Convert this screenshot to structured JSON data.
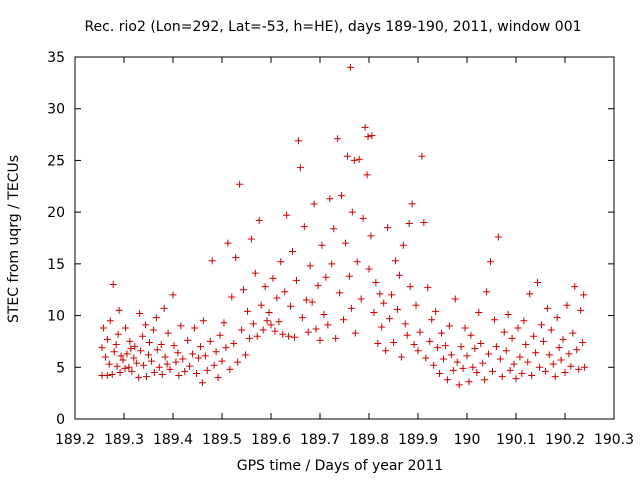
{
  "chart_data": {
    "type": "scatter",
    "title": "Rec. rio2 (Lon=292, Lat=-53, h=HE), days 189-190, 2011, window 001",
    "xlabel": "GPS time / Days of year 2011",
    "ylabel": "STEC from uqrg / TECUs",
    "xlim": [
      189.2,
      190.3
    ],
    "ylim": [
      0,
      35
    ],
    "xticks": [
      189.2,
      189.3,
      189.4,
      189.5,
      189.6,
      189.7,
      189.8,
      189.9,
      190,
      190.1,
      190.2,
      190.3
    ],
    "xtick_labels": [
      "189.2",
      "189.3",
      "189.4",
      "189.5",
      "189.6",
      "189.7",
      "189.8",
      "189.9",
      "190",
      "190.1",
      "190.2",
      "190.3"
    ],
    "yticks": [
      0,
      5,
      10,
      15,
      20,
      25,
      30,
      35
    ],
    "ytick_labels": [
      "0",
      "5",
      "10",
      "15",
      "20",
      "25",
      "30",
      "35"
    ],
    "grid": false,
    "marker": "+",
    "color": "#cc0000",
    "series": [
      {
        "name": "STEC",
        "points": [
          [
            189.255,
            4.2
          ],
          [
            189.255,
            6.9
          ],
          [
            189.258,
            8.8
          ],
          [
            189.262,
            6.0
          ],
          [
            189.266,
            4.2
          ],
          [
            189.266,
            7.7
          ],
          [
            189.27,
            5.3
          ],
          [
            189.272,
            9.5
          ],
          [
            189.276,
            4.3
          ],
          [
            189.278,
            13.0
          ],
          [
            189.28,
            6.5
          ],
          [
            189.284,
            7.2
          ],
          [
            189.286,
            5.1
          ],
          [
            189.288,
            8.2
          ],
          [
            189.29,
            10.5
          ],
          [
            189.292,
            4.5
          ],
          [
            189.294,
            6.1
          ],
          [
            189.298,
            5.7
          ],
          [
            189.302,
            4.9
          ],
          [
            189.303,
            8.8
          ],
          [
            189.306,
            6.3
          ],
          [
            189.31,
            5.0
          ],
          [
            189.312,
            7.5
          ],
          [
            189.314,
            6.8
          ],
          [
            189.316,
            4.6
          ],
          [
            189.32,
            5.9
          ],
          [
            189.322,
            7.0
          ],
          [
            189.326,
            5.4
          ],
          [
            189.33,
            4.0
          ],
          [
            189.332,
            10.2
          ],
          [
            189.334,
            6.6
          ],
          [
            189.338,
            8.0
          ],
          [
            189.34,
            5.2
          ],
          [
            189.344,
            9.1
          ],
          [
            189.346,
            4.1
          ],
          [
            189.35,
            6.2
          ],
          [
            189.352,
            7.4
          ],
          [
            189.356,
            5.6
          ],
          [
            189.36,
            8.6
          ],
          [
            189.362,
            4.5
          ],
          [
            189.366,
            9.8
          ],
          [
            189.368,
            6.7
          ],
          [
            189.372,
            5.0
          ],
          [
            189.376,
            7.2
          ],
          [
            189.378,
            4.3
          ],
          [
            189.382,
            10.7
          ],
          [
            189.384,
            6.0
          ],
          [
            189.388,
            5.3
          ],
          [
            189.39,
            8.3
          ],
          [
            189.394,
            4.8
          ],
          [
            189.4,
            12.0
          ],
          [
            189.402,
            7.1
          ],
          [
            189.406,
            5.5
          ],
          [
            189.41,
            6.4
          ],
          [
            189.412,
            4.2
          ],
          [
            189.416,
            9.0
          ],
          [
            189.42,
            5.8
          ],
          [
            189.424,
            4.6
          ],
          [
            189.43,
            7.6
          ],
          [
            189.434,
            5.1
          ],
          [
            189.44,
            6.3
          ],
          [
            189.444,
            8.8
          ],
          [
            189.448,
            4.4
          ],
          [
            189.452,
            5.9
          ],
          [
            189.456,
            7.0
          ],
          [
            189.46,
            3.5
          ],
          [
            189.462,
            9.5
          ],
          [
            189.466,
            6.1
          ],
          [
            189.47,
            4.7
          ],
          [
            189.476,
            7.5
          ],
          [
            189.48,
            15.3
          ],
          [
            189.484,
            5.2
          ],
          [
            189.488,
            6.5
          ],
          [
            189.492,
            4.0
          ],
          [
            189.496,
            8.1
          ],
          [
            189.5,
            5.6
          ],
          [
            189.504,
            9.3
          ],
          [
            189.508,
            6.9
          ],
          [
            189.512,
            17.0
          ],
          [
            189.516,
            4.8
          ],
          [
            189.52,
            11.8
          ],
          [
            189.524,
            7.3
          ],
          [
            189.528,
            15.6
          ],
          [
            189.532,
            5.5
          ],
          [
            189.536,
            22.7
          ],
          [
            189.54,
            8.6
          ],
          [
            189.544,
            12.5
          ],
          [
            189.548,
            6.2
          ],
          [
            189.552,
            10.4
          ],
          [
            189.556,
            7.8
          ],
          [
            189.56,
            17.4
          ],
          [
            189.564,
            9.2
          ],
          [
            189.568,
            14.1
          ],
          [
            189.572,
            8.0
          ],
          [
            189.576,
            19.2
          ],
          [
            189.58,
            11.0
          ],
          [
            189.584,
            8.6
          ],
          [
            189.588,
            12.8
          ],
          [
            189.592,
            9.5
          ],
          [
            189.596,
            10.3
          ],
          [
            189.6,
            9.1
          ],
          [
            189.604,
            13.6
          ],
          [
            189.608,
            8.5
          ],
          [
            189.612,
            11.7
          ],
          [
            189.616,
            9.4
          ],
          [
            189.62,
            15.2
          ],
          [
            189.624,
            8.2
          ],
          [
            189.628,
            12.3
          ],
          [
            189.632,
            19.7
          ],
          [
            189.636,
            8.0
          ],
          [
            189.64,
            10.9
          ],
          [
            189.644,
            16.2
          ],
          [
            189.648,
            7.9
          ],
          [
            189.652,
            13.4
          ],
          [
            189.656,
            26.9
          ],
          [
            189.66,
            24.3
          ],
          [
            189.664,
            9.8
          ],
          [
            189.668,
            18.6
          ],
          [
            189.672,
            11.5
          ],
          [
            189.676,
            8.4
          ],
          [
            189.68,
            14.8
          ],
          [
            189.684,
            11.3
          ],
          [
            189.688,
            20.8
          ],
          [
            189.692,
            8.7
          ],
          [
            189.696,
            12.9
          ],
          [
            189.7,
            7.6
          ],
          [
            189.704,
            16.8
          ],
          [
            189.708,
            10.1
          ],
          [
            189.712,
            13.7
          ],
          [
            189.716,
            9.1
          ],
          [
            189.72,
            21.3
          ],
          [
            189.724,
            15.0
          ],
          [
            189.728,
            18.4
          ],
          [
            189.732,
            7.8
          ],
          [
            189.736,
            27.1
          ],
          [
            189.74,
            12.2
          ],
          [
            189.744,
            21.6
          ],
          [
            189.748,
            9.6
          ],
          [
            189.752,
            17.0
          ],
          [
            189.756,
            25.4
          ],
          [
            189.76,
            13.8
          ],
          [
            189.762,
            34.0
          ],
          [
            189.764,
            10.7
          ],
          [
            189.766,
            20.0
          ],
          [
            189.77,
            25.0
          ],
          [
            189.772,
            8.3
          ],
          [
            189.776,
            15.2
          ],
          [
            189.78,
            25.1
          ],
          [
            189.784,
            11.6
          ],
          [
            189.788,
            19.4
          ],
          [
            189.792,
            28.2
          ],
          [
            189.796,
            23.6
          ],
          [
            189.798,
            27.3
          ],
          [
            189.8,
            14.5
          ],
          [
            189.804,
            17.7
          ],
          [
            189.806,
            27.4
          ],
          [
            189.81,
            10.3
          ],
          [
            189.814,
            13.2
          ],
          [
            189.818,
            7.3
          ],
          [
            189.822,
            12.1
          ],
          [
            189.826,
            8.9
          ],
          [
            189.83,
            11.2
          ],
          [
            189.834,
            6.6
          ],
          [
            189.838,
            18.5
          ],
          [
            189.842,
            9.7
          ],
          [
            189.846,
            12.0
          ],
          [
            189.85,
            7.4
          ],
          [
            189.854,
            15.3
          ],
          [
            189.858,
            10.6
          ],
          [
            189.862,
            13.9
          ],
          [
            189.866,
            6.0
          ],
          [
            189.87,
            16.8
          ],
          [
            189.874,
            9.2
          ],
          [
            189.878,
            8.1
          ],
          [
            189.882,
            18.9
          ],
          [
            189.884,
            12.8
          ],
          [
            189.888,
            20.8
          ],
          [
            189.892,
            7.2
          ],
          [
            189.896,
            11.0
          ],
          [
            189.9,
            6.6
          ],
          [
            189.904,
            8.4
          ],
          [
            189.908,
            25.4
          ],
          [
            189.912,
            19.0
          ],
          [
            189.916,
            5.9
          ],
          [
            189.92,
            12.7
          ],
          [
            189.924,
            7.5
          ],
          [
            189.928,
            9.6
          ],
          [
            189.932,
            5.2
          ],
          [
            189.936,
            10.4
          ],
          [
            189.94,
            6.9
          ],
          [
            189.944,
            4.4
          ],
          [
            189.948,
            8.3
          ],
          [
            189.952,
            5.8
          ],
          [
            189.956,
            7.1
          ],
          [
            189.96,
            3.8
          ],
          [
            189.964,
            9.0
          ],
          [
            189.968,
            6.2
          ],
          [
            189.972,
            4.7
          ],
          [
            189.976,
            11.6
          ],
          [
            189.98,
            5.5
          ],
          [
            189.984,
            3.3
          ],
          [
            189.988,
            7.0
          ],
          [
            189.992,
            4.9
          ],
          [
            189.996,
            8.8
          ],
          [
            190.0,
            6.1
          ],
          [
            190.004,
            3.6
          ],
          [
            190.008,
            8.1
          ],
          [
            190.012,
            5.0
          ],
          [
            190.016,
            6.8
          ],
          [
            190.02,
            4.5
          ],
          [
            190.024,
            10.3
          ],
          [
            190.028,
            7.3
          ],
          [
            190.032,
            5.4
          ],
          [
            190.036,
            3.8
          ],
          [
            190.04,
            12.3
          ],
          [
            190.044,
            6.3
          ],
          [
            190.048,
            15.2
          ],
          [
            190.052,
            4.6
          ],
          [
            190.056,
            9.6
          ],
          [
            190.06,
            7.0
          ],
          [
            190.064,
            17.6
          ],
          [
            190.068,
            5.8
          ],
          [
            190.072,
            4.1
          ],
          [
            190.076,
            8.4
          ],
          [
            190.08,
            6.6
          ],
          [
            190.084,
            10.1
          ],
          [
            190.088,
            4.7
          ],
          [
            190.092,
            7.8
          ],
          [
            190.096,
            5.3
          ],
          [
            190.1,
            3.9
          ],
          [
            190.104,
            8.8
          ],
          [
            190.108,
            6.0
          ],
          [
            190.112,
            4.4
          ],
          [
            190.116,
            9.5
          ],
          [
            190.12,
            7.2
          ],
          [
            190.124,
            5.5
          ],
          [
            190.128,
            12.1
          ],
          [
            190.132,
            4.2
          ],
          [
            190.136,
            8.0
          ],
          [
            190.14,
            6.4
          ],
          [
            190.144,
            13.2
          ],
          [
            190.148,
            5.0
          ],
          [
            190.152,
            9.1
          ],
          [
            190.156,
            7.5
          ],
          [
            190.16,
            4.6
          ],
          [
            190.164,
            10.7
          ],
          [
            190.168,
            6.2
          ],
          [
            190.172,
            8.6
          ],
          [
            190.176,
            5.3
          ],
          [
            190.18,
            4.1
          ],
          [
            190.184,
            9.8
          ],
          [
            190.188,
            6.9
          ],
          [
            190.192,
            5.7
          ],
          [
            190.196,
            7.7
          ],
          [
            190.2,
            4.5
          ],
          [
            190.204,
            11.0
          ],
          [
            190.208,
            6.3
          ],
          [
            190.212,
            5.1
          ],
          [
            190.216,
            8.3
          ],
          [
            190.22,
            12.8
          ],
          [
            190.224,
            6.7
          ],
          [
            190.228,
            4.8
          ],
          [
            190.232,
            10.5
          ],
          [
            190.236,
            7.4
          ],
          [
            190.238,
            12.0
          ],
          [
            190.24,
            5.0
          ]
        ]
      }
    ]
  }
}
